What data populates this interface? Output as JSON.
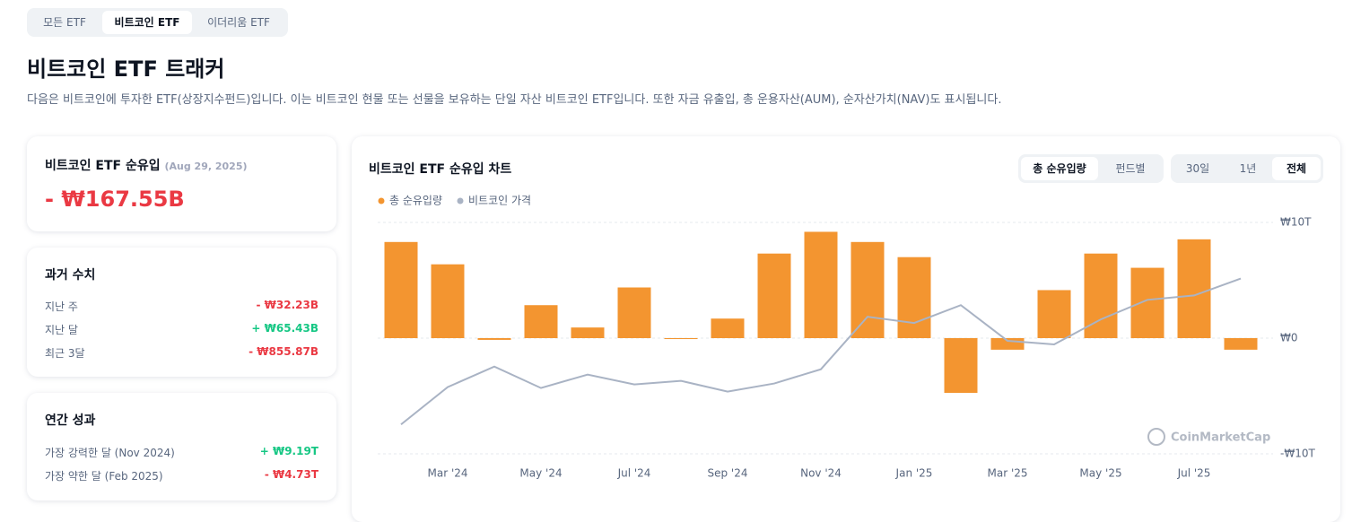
{
  "tabs": [
    "모든 ETF",
    "비트코인 ETF",
    "이더리움 ETF"
  ],
  "header": {
    "title": "비트코인 ETF 트래커",
    "description": "다음은 비트코인에 투자한 ETF(상장지수펀드)입니다. 이는 비트코인 현물 또는 선물을 보유하는 단일 자산 비트코인 ETF입니다. 또한 자금 유출입, 총 운용자산(AUM), 순자산가치(NAV)도 표시됩니다."
  },
  "summary": {
    "title": "비트코인 ETF 순유입",
    "date": "(Aug 29, 2025)",
    "value": "- ₩167.55B"
  },
  "history": {
    "title": "과거 수치",
    "rows": [
      [
        "지난 주",
        "- ₩32.23B"
      ],
      [
        "지난 달",
        "+ ₩65.43B"
      ],
      [
        "최근 3달",
        "- ₩855.87B"
      ]
    ]
  },
  "annual": {
    "title": "연간 성과",
    "rows": [
      [
        "가장 강력한 달 (Nov 2024)",
        "+ ₩9.19T"
      ],
      [
        "가장 약한 달 (Feb 2025)",
        "- ₩4.73T"
      ]
    ]
  },
  "chart_panel": {
    "title": "비트코인 ETF 순유입 차트",
    "toggles": [
      "총 순유입량",
      "펀드별"
    ],
    "ranges": [
      "30일",
      "1년",
      "전체"
    ],
    "watermark": "CoinMarketCap"
  },
  "chart_data": {
    "type": "bar",
    "categories": [
      null,
      "Mar '24",
      null,
      "May '24",
      null,
      "Jul '24",
      null,
      "Sep '24",
      null,
      "Nov '24",
      null,
      "Jan '25",
      null,
      "Mar '25",
      null,
      "May '25",
      null,
      "Jul '25",
      null
    ],
    "series": [
      {
        "name": "총 순유입량",
        "color": "#f39530",
        "type": "bar",
        "values": [
          8.31,
          6.38,
          -0.15,
          2.85,
          0.92,
          4.38,
          -0.08,
          1.69,
          7.31,
          9.19,
          8.31,
          7.0,
          -4.73,
          -1.0,
          4.15,
          7.31,
          6.08,
          8.54,
          -1.0
        ]
      },
      {
        "name": "비트코인 가격",
        "color": "#a9b3c4",
        "type": "line",
        "values": [
          -7.46,
          -4.23,
          -2.46,
          -4.31,
          -3.15,
          -4.0,
          -3.69,
          -4.62,
          -3.92,
          -2.69,
          1.85,
          1.31,
          2.85,
          -0.23,
          -0.54,
          1.62,
          3.31,
          3.69,
          5.15
        ]
      }
    ],
    "ylim": [
      -10,
      10
    ],
    "yticks": [
      {
        "value": 10,
        "label": "₩10T"
      },
      {
        "value": 0,
        "label": "₩0"
      },
      {
        "value": -10,
        "label": "-₩10T"
      }
    ],
    "grid": true
  }
}
